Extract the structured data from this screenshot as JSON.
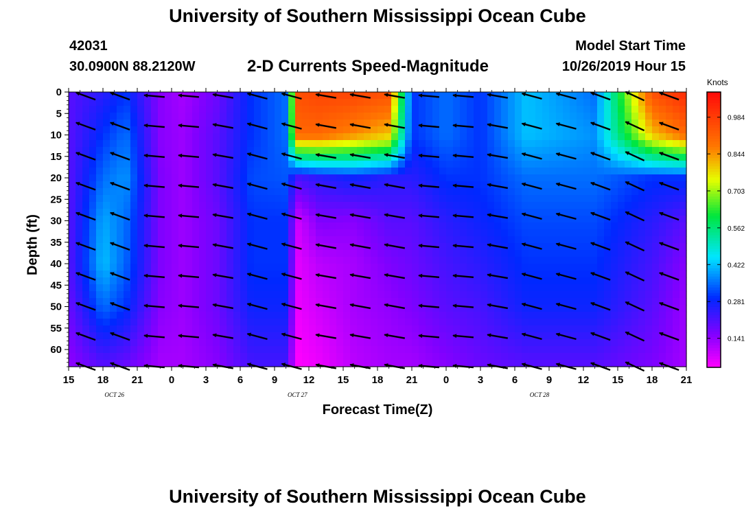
{
  "header": {
    "title": "University of Southern Mississippi Ocean Cube",
    "station_id": "42031",
    "station_location": "30.0900N 88.2120W",
    "plot_title": "2-D Currents Speed-Magnitude",
    "model_start_label": "Model Start Time",
    "model_start_value": "10/26/2019 Hour 15"
  },
  "footer": {
    "title": "University of Southern Mississippi Ocean Cube"
  },
  "chart_data": {
    "type": "heatmap",
    "xlabel": "Forecast Time(Z)",
    "ylabel": "Depth (ft)",
    "x_tick_labels": [
      "15",
      "18",
      "21",
      "0",
      "3",
      "6",
      "9",
      "12",
      "15",
      "18",
      "21",
      "0",
      "3",
      "6",
      "9",
      "12",
      "15",
      "18",
      "21"
    ],
    "date_labels": [
      {
        "label": "OCT  26",
        "hour_index": 4
      },
      {
        "label": "OCT  27",
        "hour_index": 20
      },
      {
        "label": "OCT  28",
        "hour_index": 42
      }
    ],
    "xlim_hours": [
      0,
      54
    ],
    "y_ticks": [
      0,
      5,
      10,
      15,
      20,
      25,
      30,
      35,
      40,
      45,
      50,
      55,
      60
    ],
    "ylim": [
      0,
      64
    ],
    "colorbar": {
      "unit": "Knots",
      "tick_labels": [
        "0.984",
        "0.844",
        "0.703",
        "0.562",
        "0.422",
        "0.281",
        "0.141"
      ],
      "min": 0.03,
      "max": 1.08
    },
    "depth_rows": [
      0,
      10,
      20,
      30,
      40,
      50,
      64
    ],
    "columns_hours": [
      0,
      2,
      4.5,
      7,
      9,
      12,
      16,
      18,
      19,
      21,
      24,
      26,
      28,
      30,
      32,
      34,
      36,
      38,
      42,
      46,
      49,
      51,
      54
    ],
    "speed": [
      [
        0.2,
        0.25,
        0.3,
        0.15,
        0.12,
        0.18,
        0.3,
        0.35,
        0.95,
        0.97,
        0.97,
        0.95,
        0.3,
        0.35,
        0.3,
        0.42,
        0.35,
        0.95,
        1.02
      ],
      [
        0.2,
        0.3,
        0.35,
        0.15,
        0.13,
        0.2,
        0.3,
        0.35,
        0.9,
        0.9,
        0.85,
        0.8,
        0.3,
        0.35,
        0.3,
        0.42,
        0.38,
        0.8,
        0.9
      ],
      [
        0.2,
        0.35,
        0.38,
        0.16,
        0.13,
        0.2,
        0.32,
        0.33,
        0.22,
        0.25,
        0.28,
        0.25,
        0.25,
        0.3,
        0.3,
        0.35,
        0.35,
        0.3,
        0.3
      ],
      [
        0.2,
        0.4,
        0.35,
        0.16,
        0.13,
        0.18,
        0.3,
        0.3,
        0.08,
        0.16,
        0.15,
        0.2,
        0.2,
        0.25,
        0.28,
        0.32,
        0.32,
        0.25,
        0.2
      ],
      [
        0.2,
        0.42,
        0.34,
        0.16,
        0.13,
        0.18,
        0.3,
        0.3,
        0.06,
        0.1,
        0.12,
        0.16,
        0.18,
        0.22,
        0.25,
        0.3,
        0.3,
        0.22,
        0.15
      ],
      [
        0.18,
        0.35,
        0.3,
        0.15,
        0.13,
        0.18,
        0.28,
        0.28,
        0.05,
        0.08,
        0.12,
        0.14,
        0.16,
        0.2,
        0.22,
        0.28,
        0.28,
        0.2,
        0.13
      ],
      [
        0.14,
        0.2,
        0.18,
        0.12,
        0.12,
        0.15,
        0.22,
        0.22,
        0.03,
        0.05,
        0.1,
        0.12,
        0.12,
        0.15,
        0.18,
        0.2,
        0.2,
        0.16,
        0.12
      ]
    ],
    "speed_columns_hours": [
      0,
      3,
      5,
      8,
      10,
      13,
      16,
      19,
      20,
      22,
      25,
      28,
      30,
      33,
      36,
      40,
      46,
      51,
      54
    ],
    "vector_note": "",
    "vector_hours": [
      1.5,
      4.5,
      7.5,
      10.5,
      13.5,
      16.5,
      19.5,
      22.5,
      25.5,
      28.5,
      31.5,
      34.5,
      37.5,
      40.5,
      43.5,
      46.5,
      49.5,
      52.5
    ],
    "vector_depths": [
      0,
      7,
      14,
      21,
      28,
      35,
      42,
      49,
      56,
      63
    ],
    "vector_angles_deg": [
      200,
      200,
      185,
      185,
      190,
      195,
      195,
      190,
      190,
      190,
      185,
      185,
      190,
      195,
      195,
      200,
      205,
      200
    ]
  }
}
